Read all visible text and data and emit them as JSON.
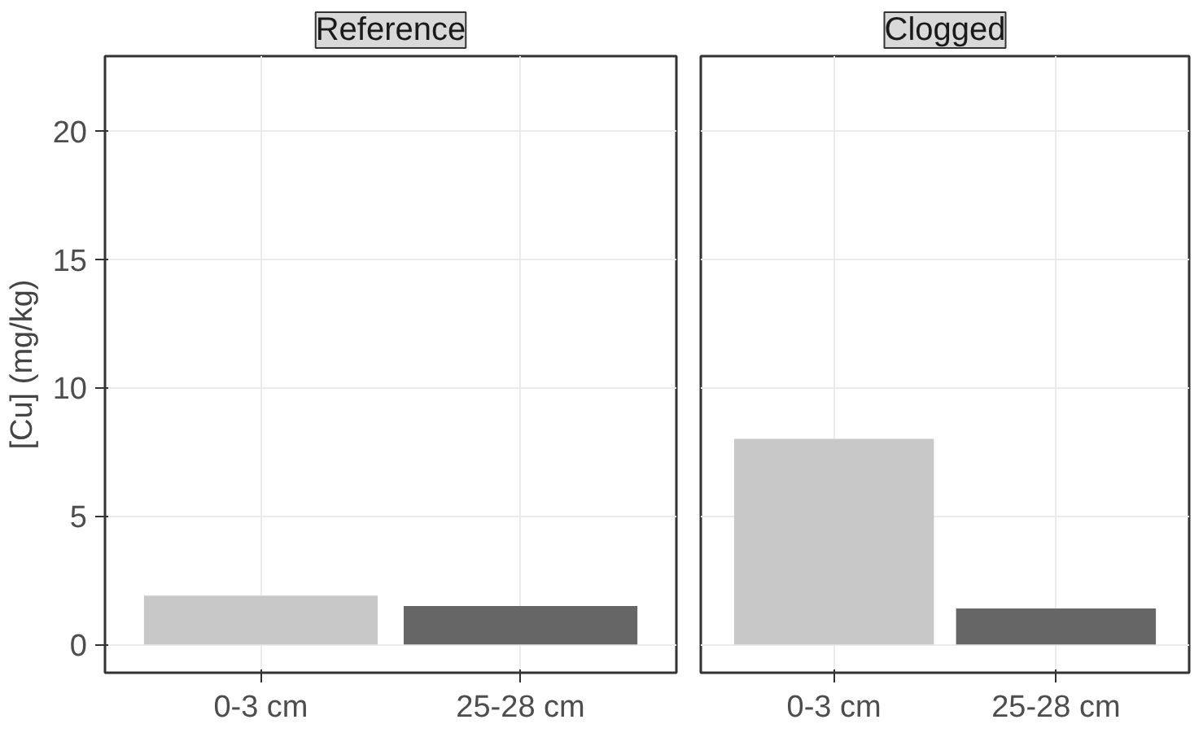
{
  "chart_data": [
    {
      "type": "bar",
      "title": "Reference",
      "ylabel": "[Cu] (mg/kg)",
      "categories": [
        "0-3 cm",
        "25-28 cm"
      ],
      "values": [
        1.9,
        1.5
      ],
      "colors": [
        "#c8c8c8",
        "#666666"
      ],
      "ylim": [
        -1.1,
        22.9
      ],
      "yticks": [
        0,
        5,
        10,
        15,
        20
      ],
      "grid": true
    },
    {
      "type": "bar",
      "title": "Clogged",
      "categories": [
        "0-3 cm",
        "25-28 cm"
      ],
      "values": [
        8.0,
        1.4
      ],
      "colors": [
        "#c8c8c8",
        "#666666"
      ],
      "ylim": [
        -1.1,
        22.9
      ],
      "yticks": [
        0,
        5,
        10,
        15,
        20
      ],
      "grid": true,
      "tick_labels": "x"
    }
  ]
}
